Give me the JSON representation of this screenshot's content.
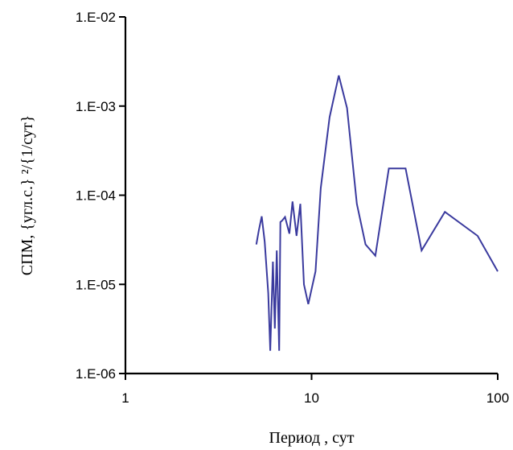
{
  "chart_data": {
    "type": "line",
    "xscale": "log",
    "yscale": "log",
    "xlim": [
      1,
      100
    ],
    "ylim": [
      1e-06,
      0.01
    ],
    "grid": false,
    "xlabel": "Период , сут",
    "ylabel": "СПМ, {угл.с.} ²/{1/сут}",
    "xtick_labels": [
      {
        "value": 1,
        "label": "1"
      },
      {
        "value": 10,
        "label": "10"
      },
      {
        "value": 100,
        "label": "100"
      }
    ],
    "ytick_labels": [
      {
        "value": 1e-06,
        "label": "1.E-06"
      },
      {
        "value": 1e-05,
        "label": "1.E-05"
      },
      {
        "value": 0.0001,
        "label": "1.E-04"
      },
      {
        "value": 0.001,
        "label": "1.E-03"
      },
      {
        "value": 0.01,
        "label": "1.E-02"
      }
    ],
    "series": [
      {
        "color": "#3a3a9e",
        "x": [
          5.05,
          5.2,
          5.4,
          5.6,
          5.85,
          6.0,
          6.2,
          6.35,
          6.5,
          6.7,
          6.8,
          6.95,
          7.2,
          7.6,
          7.9,
          8.3,
          8.7,
          9.1,
          9.6,
          10.5,
          11.2,
          12.5,
          14.0,
          15.5,
          17.5,
          19.5,
          22.0,
          26.0,
          32.0,
          39.0,
          52.0,
          78.0,
          100.0
        ],
        "y": [
          2.8e-05,
          4e-05,
          5.8e-05,
          3e-05,
          8e-06,
          1.8e-06,
          1.8e-05,
          3.2e-06,
          2.4e-05,
          1.8e-06,
          5e-05,
          5.2e-05,
          5.7e-05,
          3.7e-05,
          8.5e-05,
          3.5e-05,
          8e-05,
          1e-05,
          6e-06,
          1.4e-05,
          0.00012,
          0.00075,
          0.0022,
          0.00095,
          8e-05,
          2.8e-05,
          2.1e-05,
          0.0002,
          0.0002,
          2.4e-05,
          6.5e-05,
          3.5e-05,
          1.4e-05
        ]
      }
    ]
  }
}
